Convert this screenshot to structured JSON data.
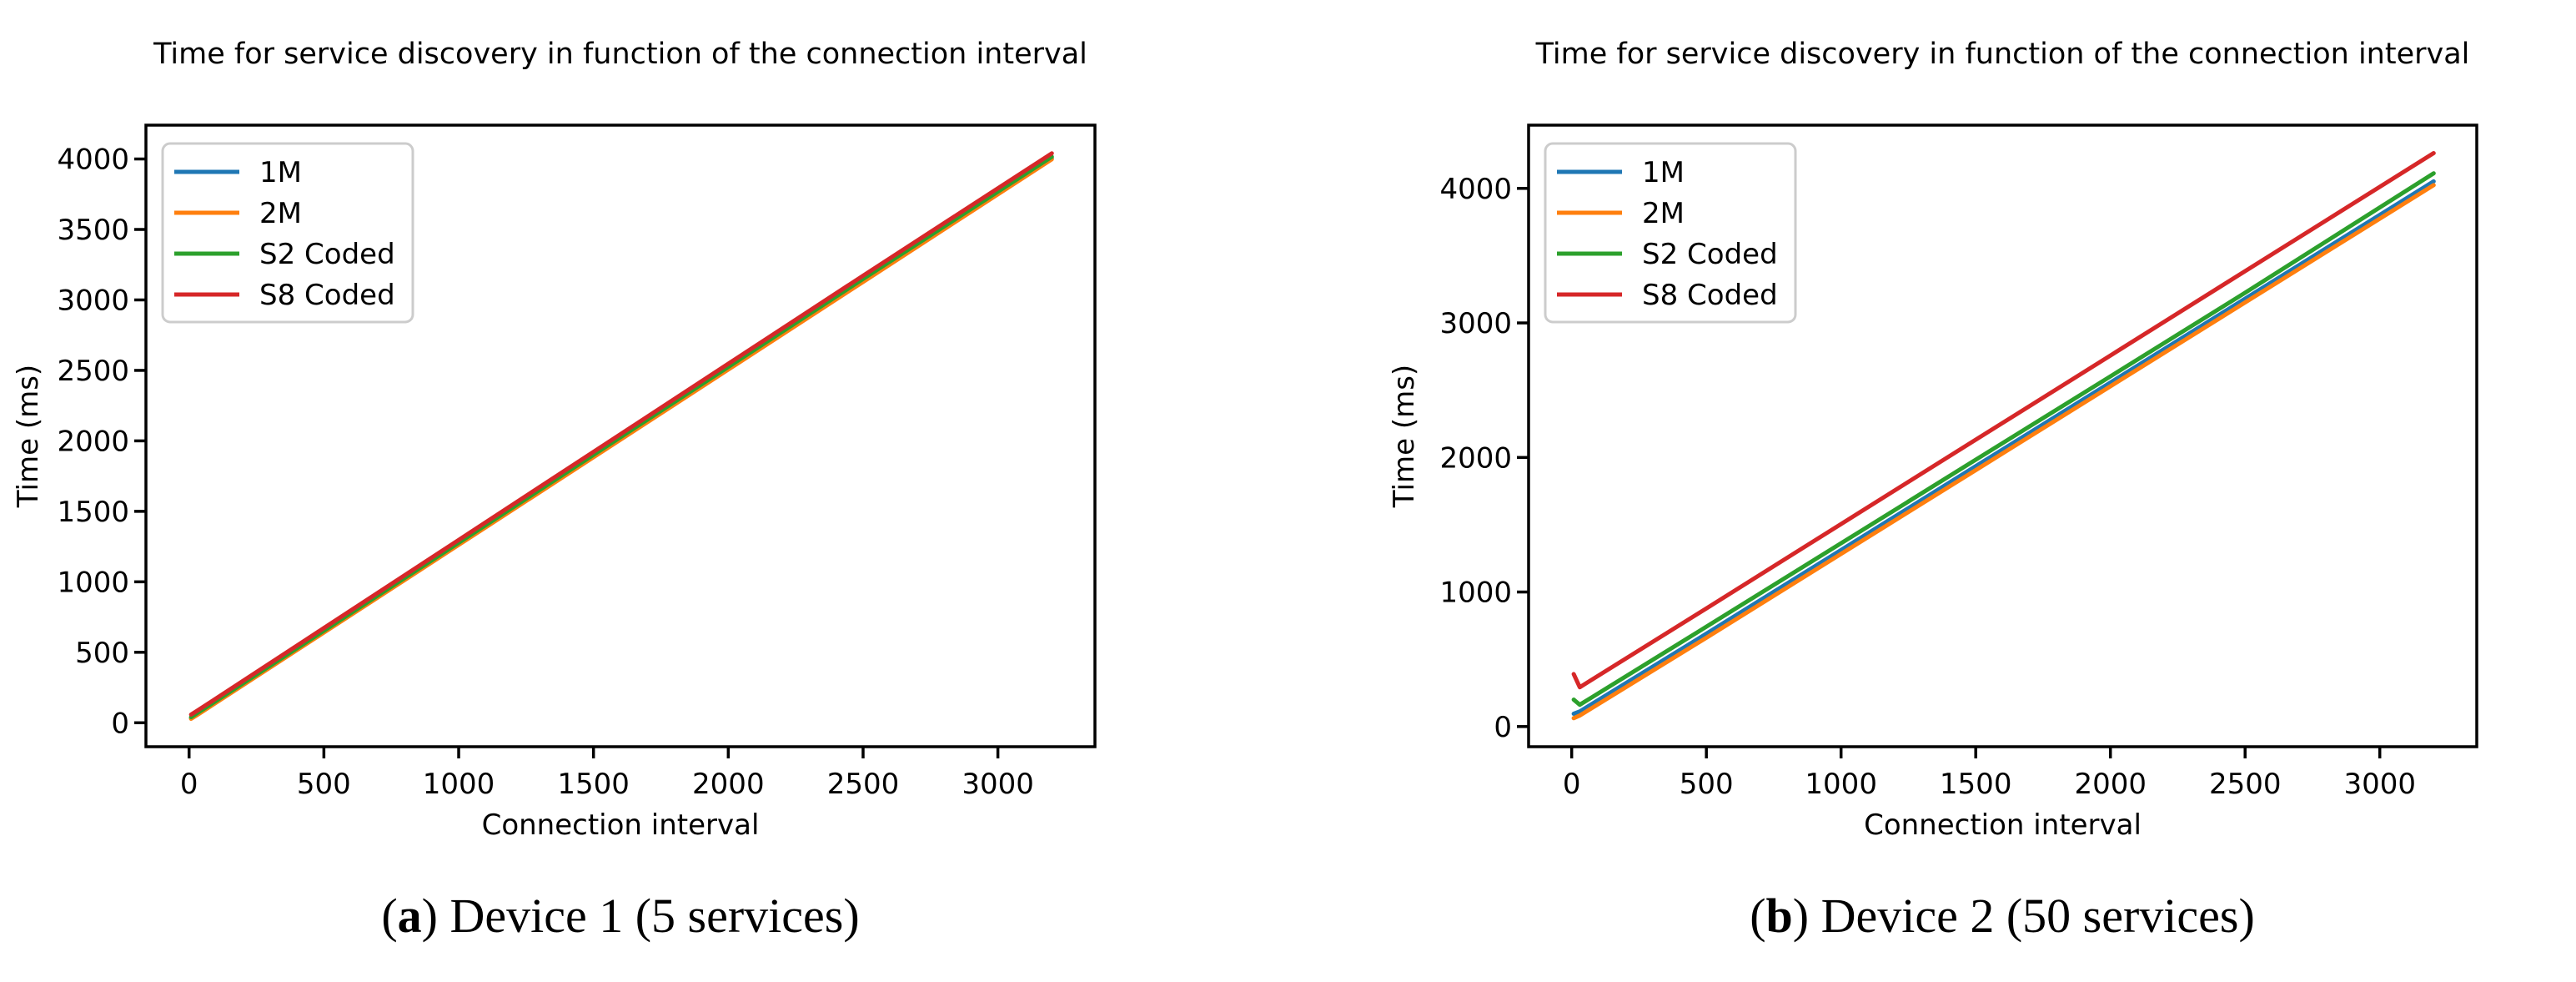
{
  "page": {
    "background": "#ffffff"
  },
  "colors": {
    "axis": "#000000",
    "legend_edge": "#cccccc",
    "legend_fill": "#ffffff",
    "series_blue": "#1f77b4",
    "series_orange": "#ff7f0e",
    "series_green": "#2ca02c",
    "series_red": "#d62728"
  },
  "chart_data": [
    {
      "id": "a",
      "type": "line",
      "title": "Time for service discovery in function of the connection interval",
      "xlabel": "Connection interval",
      "ylabel": "Time (ms)",
      "caption": {
        "open": "(",
        "marker": "a",
        "close": ")",
        "text": " Device 1 (5 services)"
      },
      "xlim": [
        -160,
        3360
      ],
      "ylim": [
        -170,
        4240
      ],
      "xticks": [
        0,
        500,
        1000,
        1500,
        2000,
        2500,
        3000
      ],
      "yticks": [
        0,
        500,
        1000,
        1500,
        2000,
        2500,
        3000,
        3500,
        4000
      ],
      "grid": false,
      "legend_position": "upper-left",
      "x": [
        7.5,
        30,
        500,
        1000,
        1500,
        2000,
        2500,
        3200
      ],
      "series": [
        {
          "name": "1M",
          "color": "#1f77b4",
          "values": [
            33,
            60,
            645,
            1268,
            1890,
            2513,
            3135,
            4006
          ]
        },
        {
          "name": "2M",
          "color": "#ff7f0e",
          "values": [
            28,
            55,
            640,
            1262,
            1884,
            2506,
            3128,
            3998
          ]
        },
        {
          "name": "S2 Coded",
          "color": "#2ca02c",
          "values": [
            40,
            68,
            653,
            1277,
            1901,
            2525,
            3149,
            4016
          ]
        },
        {
          "name": "S8 Coded",
          "color": "#d62728",
          "values": [
            58,
            85,
            672,
            1297,
            1922,
            2547,
            3172,
            4040
          ]
        }
      ]
    },
    {
      "id": "b",
      "type": "line",
      "title": "Time for service discovery in function of the connection interval",
      "xlabel": "Connection interval",
      "ylabel": "Time (ms)",
      "caption": {
        "open": "(",
        "marker": "b",
        "close": ")",
        "text": " Device 2 (50 services)"
      },
      "xlim": [
        -160,
        3360
      ],
      "ylim": [
        -150,
        4470
      ],
      "xticks": [
        0,
        500,
        1000,
        1500,
        2000,
        2500,
        3000
      ],
      "yticks": [
        0,
        1000,
        2000,
        3000,
        4000
      ],
      "grid": false,
      "legend_position": "upper-left",
      "x": [
        7.5,
        30,
        500,
        1000,
        1500,
        2000,
        2500,
        3200
      ],
      "series": [
        {
          "name": "1M",
          "color": "#1f77b4",
          "values": [
            95,
            112,
            690,
            1312,
            1935,
            2557,
            3180,
            4052
          ]
        },
        {
          "name": "2M",
          "color": "#ff7f0e",
          "values": [
            62,
            82,
            660,
            1283,
            1906,
            2529,
            3152,
            4024
          ]
        },
        {
          "name": "S2 Coded",
          "color": "#2ca02c",
          "values": [
            200,
            162,
            742,
            1362,
            1983,
            2603,
            3224,
            4112
          ]
        },
        {
          "name": "S8 Coded",
          "color": "#d62728",
          "values": [
            390,
            292,
            878,
            1505,
            2132,
            2758,
            3385,
            4262
          ]
        }
      ]
    }
  ]
}
